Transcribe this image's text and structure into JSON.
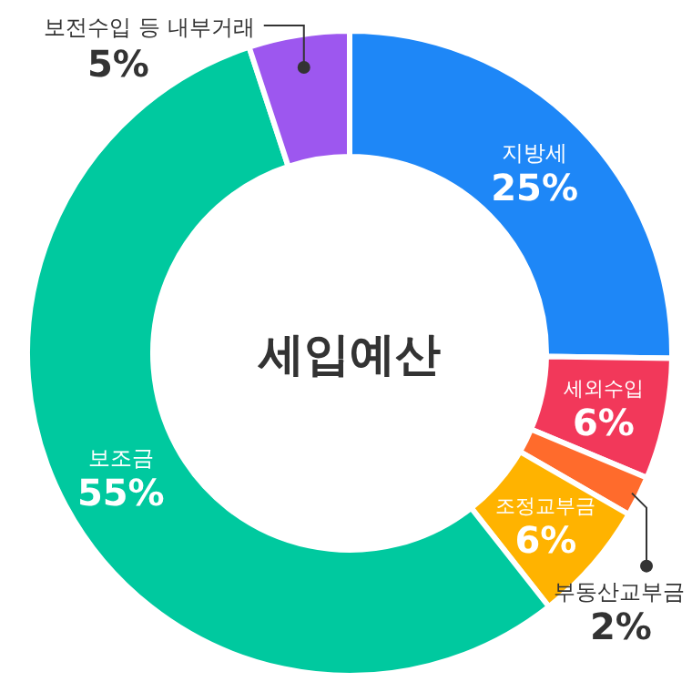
{
  "chart_data": {
    "type": "donut",
    "title": "세입예산",
    "categories": [
      "지방세",
      "세외수입",
      "부동산교부금",
      "조정교부금",
      "보조금",
      "보전수입 등 내부거래"
    ],
    "values": [
      25,
      6,
      2,
      6,
      55,
      5
    ],
    "colors": [
      "#1e87f7",
      "#f2385a",
      "#ff6b2c",
      "#ffb300",
      "#00c99f",
      "#9d57ef"
    ],
    "value_labels": [
      "25%",
      "6%",
      "2%",
      "6%",
      "55%",
      "5%"
    ]
  }
}
